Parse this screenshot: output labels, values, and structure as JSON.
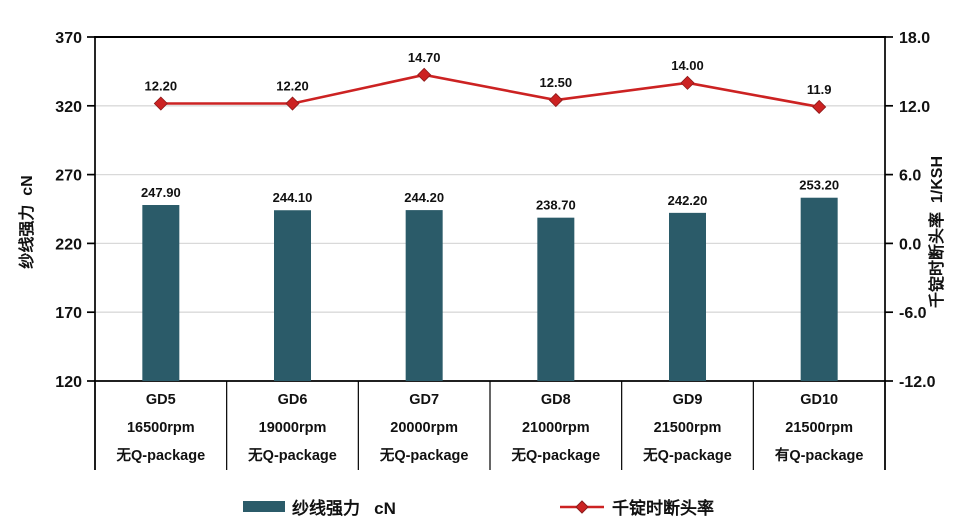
{
  "chart_data": {
    "type": "bar+line",
    "title": "",
    "grid": true,
    "legend_position": "bottom",
    "categories": [
      [
        "GD5",
        "16500rpm",
        "无Q-package"
      ],
      [
        "GD6",
        "19000rpm",
        "无Q-package"
      ],
      [
        "GD7",
        "20000rpm",
        "无Q-package"
      ],
      [
        "GD8",
        "21000rpm",
        "无Q-package"
      ],
      [
        "GD9",
        "21500rpm",
        "无Q-package"
      ],
      [
        "GD10",
        "21500rpm",
        "有Q-package"
      ]
    ],
    "series": [
      {
        "name": "纱线强力 cN",
        "type": "bar",
        "axis": "left",
        "color": "#2B5B69",
        "values": [
          247.9,
          244.1,
          244.2,
          238.7,
          242.2,
          253.2
        ],
        "labels": [
          "247.90",
          "244.10",
          "244.20",
          "238.70",
          "242.20",
          "253.20"
        ]
      },
      {
        "name": "千锭时断头率",
        "type": "line",
        "axis": "right",
        "color": "#CC2222",
        "marker": "diamond",
        "values": [
          12.2,
          12.2,
          14.7,
          12.5,
          14.0,
          11.9
        ],
        "labels": [
          "12.20",
          "12.20",
          "14.70",
          "12.50",
          "14.00",
          "11.9"
        ]
      }
    ],
    "left_axis": {
      "title": "纱线强力  cN",
      "min": 120,
      "max": 370,
      "tick_labels": [
        "370",
        "320",
        "270",
        "220",
        "170",
        "120"
      ]
    },
    "right_axis": {
      "title": "千锭时断头率  1/KSH",
      "min": -12,
      "max": 18,
      "tick_labels": [
        "18.0",
        "12.0",
        "6.0",
        "0.0",
        "-6.0",
        "-12.0"
      ]
    }
  },
  "legend": {
    "items": [
      {
        "label": "纱线强力   cN",
        "marker": "bar-swatch",
        "color": "#2B5B69"
      },
      {
        "label": "千锭时断头率",
        "marker": "line-diamond",
        "color": "#CC2222"
      }
    ]
  },
  "colors": {
    "bar": "#2B5B69",
    "line": "#CC2222",
    "gridline": "#D9D9D9",
    "axis": "#000000"
  }
}
